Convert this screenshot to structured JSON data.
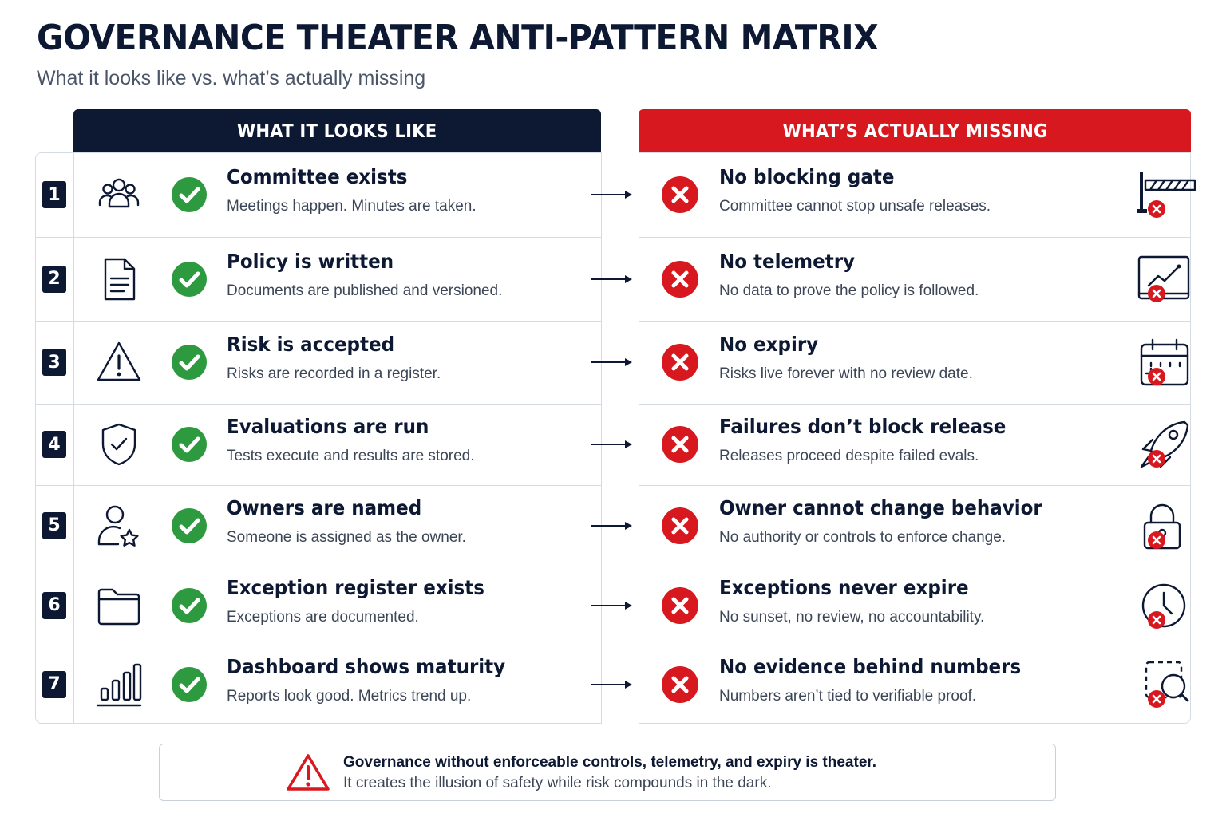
{
  "header": {
    "title": "GOVERNANCE THEATER ANTI-PATTERN MATRIX",
    "subtitle": "What it looks like vs. what’s actually missing"
  },
  "columns": {
    "left": "WHAT IT LOOKS LIKE",
    "right": "WHAT’S ACTUALLY MISSING"
  },
  "colors": {
    "navy": "#0d1833",
    "red": "#d7191f",
    "green": "#2e9a3f"
  },
  "rows": [
    {
      "number": "1",
      "left_icon": "people-group-icon",
      "left_title": "Committee exists",
      "left_desc": "Meetings happen. Minutes are taken.",
      "right_title": "No blocking gate",
      "right_desc": "Committee cannot stop unsafe releases.",
      "right_icon": "barrier-gate-icon"
    },
    {
      "number": "2",
      "left_icon": "document-icon",
      "left_title": "Policy is written",
      "left_desc": "Documents are published and versioned.",
      "right_title": "No telemetry",
      "right_desc": "No data to prove the policy is followed.",
      "right_icon": "chart-monitor-icon"
    },
    {
      "number": "3",
      "left_icon": "warning-triangle-icon",
      "left_title": "Risk is accepted",
      "left_desc": "Risks are recorded in a register.",
      "right_title": "No expiry",
      "right_desc": "Risks live forever with no review date.",
      "right_icon": "calendar-icon"
    },
    {
      "number": "4",
      "left_icon": "shield-check-icon",
      "left_title": "Evaluations are run",
      "left_desc": "Tests execute and results are stored.",
      "right_title": "Failures don’t block release",
      "right_desc": "Releases proceed despite failed evals.",
      "right_icon": "rocket-icon"
    },
    {
      "number": "5",
      "left_icon": "user-star-icon",
      "left_title": "Owners are named",
      "left_desc": "Someone is assigned as the owner.",
      "right_title": "Owner cannot change behavior",
      "right_desc": "No authority or controls to enforce change.",
      "right_icon": "padlock-icon"
    },
    {
      "number": "6",
      "left_icon": "folder-icon",
      "left_title": "Exception register exists",
      "left_desc": "Exceptions are documented.",
      "right_title": "Exceptions never expire",
      "right_desc": "No sunset, no review, no accountability.",
      "right_icon": "clock-icon"
    },
    {
      "number": "7",
      "left_icon": "bar-chart-icon",
      "left_title": "Dashboard shows maturity",
      "left_desc": "Reports look good. Metrics trend up.",
      "right_title": "No evidence behind numbers",
      "right_desc": "Numbers aren’t tied to verifiable proof.",
      "right_icon": "magnifier-dashed-icon"
    }
  ],
  "footer": {
    "icon": "warning-triangle-icon",
    "line1": "Governance without enforceable controls, telemetry, and expiry is theater.",
    "line2": "It creates the illusion of safety while risk compounds in the dark."
  }
}
